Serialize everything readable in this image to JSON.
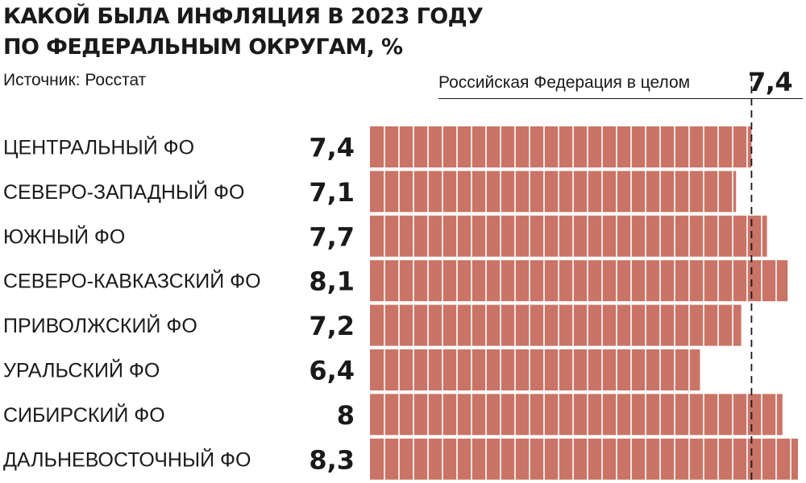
{
  "title_lines": [
    "КАКОЙ БЫЛА ИНФЛЯЦИЯ В 2023 ГОДУ",
    "ПО ФЕДЕРАЛЬНЫМ ОКРУГАМ, %"
  ],
  "source": "Источник: Росстат",
  "reference": {
    "label": "Российская Федерация в целом",
    "value": 7.4,
    "value_text": "7,4"
  },
  "colors": {
    "bar": "#c97466",
    "bar_divider": "#ffffff",
    "reference_line": "#1a1a1a",
    "text": "#1a1a1a"
  },
  "chart_data": {
    "type": "bar",
    "orientation": "horizontal",
    "title": "КАКОЙ БЫЛА ИНФЛЯЦИЯ В 2023 ГОДУ ПО ФЕДЕРАЛЬНЫМ ОКРУГАМ, %",
    "categories": [
      "ЦЕНТРАЛЬНЫЙ ФО",
      "СЕВЕРО-ЗАПАДНЫЙ ФО",
      "ЮЖНЫЙ ФО",
      "СЕВЕРО-КАВКАЗСКИЙ ФО",
      "ПРИВОЛЖСКИЙ ФО",
      "УРАЛЬСКИЙ ФО",
      "СИБИРСКИЙ ФО",
      "ДАЛЬНЕВОСТОЧНЫЙ ФО"
    ],
    "values": [
      7.4,
      7.1,
      7.7,
      8.1,
      7.2,
      6.4,
      8.0,
      8.3
    ],
    "value_labels": [
      "7,4",
      "7,1",
      "7,7",
      "8,1",
      "7,2",
      "6,4",
      "8",
      "8,3"
    ],
    "reference_line": 7.4,
    "xlim": [
      0,
      8.3
    ],
    "grid": false,
    "legend": "none"
  }
}
